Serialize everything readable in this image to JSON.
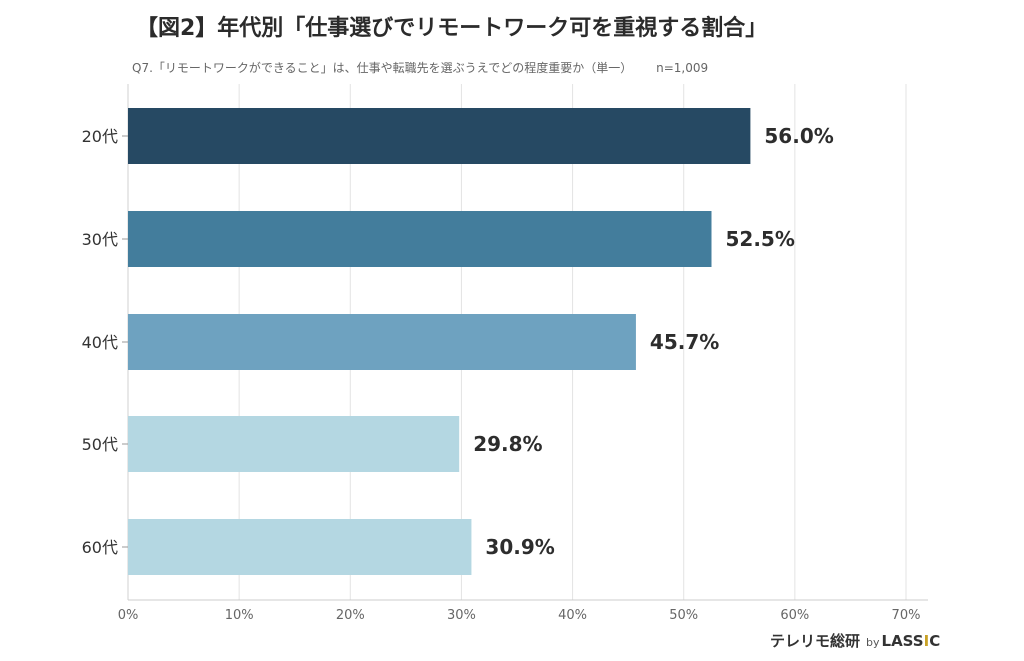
{
  "header": {
    "title": "【図2】年代別「仕事選びでリモートワーク可を重視する割合」",
    "question": "Q7.「リモートワークができること」は、仕事や転職先を選ぶうえでどの程度重要か（単一）",
    "sample": "n=1,009"
  },
  "brand": {
    "name": "テレリモ総研",
    "by": "by",
    "company_prefix": "LASS",
    "company_i": "I",
    "company_suffix": "C"
  },
  "chart_data": {
    "type": "bar",
    "orientation": "horizontal",
    "categories": [
      "20代",
      "30代",
      "40代",
      "50代",
      "60代"
    ],
    "values": [
      56.0,
      52.5,
      45.7,
      29.8,
      30.9
    ],
    "value_labels": [
      "56.0%",
      "52.5%",
      "45.7%",
      "29.8%",
      "30.9%"
    ],
    "colors": [
      "#264963",
      "#437d9c",
      "#6ea2c0",
      "#b4d7e2",
      "#b4d7e2"
    ],
    "xlim": [
      0,
      70
    ],
    "x_ticks": [
      0,
      10,
      20,
      30,
      40,
      50,
      60,
      70
    ],
    "x_tick_labels": [
      "0%",
      "10%",
      "20%",
      "30%",
      "40%",
      "50%",
      "60%",
      "70%"
    ],
    "grid": true,
    "gridline_color": "#e3e3e3"
  }
}
